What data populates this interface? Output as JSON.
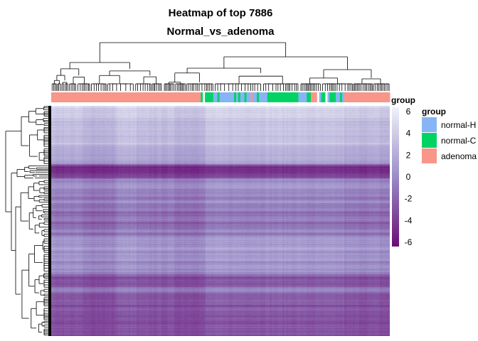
{
  "chart_data": {
    "type": "heatmap",
    "title": "Heatmap of top 7886",
    "subtitle": "Normal_vs_adenoma",
    "color_scale": {
      "title": "group",
      "min": -6,
      "max": 6,
      "ticks": [
        "6",
        "4",
        "2",
        "0",
        "-2",
        "-4",
        "-6"
      ],
      "tick_values": [
        6,
        4,
        2,
        0,
        -2,
        -4,
        -6
      ],
      "low_color": "#6A0F74",
      "mid_color": "#9A8CC6",
      "high_color": "#EEF3FA"
    },
    "annotation_legend": {
      "title": "group",
      "items": [
        {
          "label": "normal-H",
          "color": "#87B4F7"
        },
        {
          "label": "normal-C",
          "color": "#00D364"
        },
        {
          "label": "adenoma",
          "color": "#F8968A"
        }
      ]
    },
    "column_groups": "AAAAAAAAAAAAAAAAAAAAAAAAAAAAAAAAAAAAAAAAAAAAAAAAAAAAAAAAAAAAAAAAAAAAAAAACNCCCCHHCHHHHHHHCHCHHCHHAHHCHHHHCCCCCCCCCCCCCCCHHHHCCAAANHCCNHCCCHHCHAAAAAAAAAAAAAAAAAAAAAA",
    "row_profile_values": [
      [
        0,
        5.2
      ],
      [
        3,
        3.8
      ],
      [
        8,
        3.2
      ],
      [
        14,
        3.7
      ],
      [
        20,
        2.6
      ],
      [
        27,
        2.2
      ],
      [
        33,
        3.1
      ],
      [
        40,
        2.4
      ],
      [
        46,
        2.6
      ],
      [
        52,
        3.0
      ],
      [
        58,
        2.0
      ],
      [
        64,
        1.5
      ],
      [
        70,
        1.2
      ],
      [
        75,
        1.6
      ],
      [
        80,
        0.8
      ],
      [
        84,
        -3.8
      ],
      [
        87,
        -4.7
      ],
      [
        92,
        -4.4
      ],
      [
        97,
        -4.3
      ],
      [
        100,
        -3.9
      ],
      [
        103,
        0.7
      ],
      [
        106,
        -0.6
      ],
      [
        110,
        0.2
      ],
      [
        114,
        0.6
      ],
      [
        120,
        -1.0
      ],
      [
        125,
        -0.4
      ],
      [
        130,
        -1.2
      ],
      [
        135,
        0.2
      ],
      [
        140,
        -1.5
      ],
      [
        145,
        -1.0
      ],
      [
        150,
        -2.2
      ],
      [
        155,
        -1.4
      ],
      [
        160,
        -0.7
      ],
      [
        165,
        -2.4
      ],
      [
        170,
        -1.8
      ],
      [
        175,
        -0.3
      ],
      [
        180,
        -1.6
      ],
      [
        185,
        0.3
      ],
      [
        190,
        0.7
      ],
      [
        195,
        0.2
      ],
      [
        200,
        0.9
      ],
      [
        205,
        -0.4
      ],
      [
        210,
        0.6
      ],
      [
        215,
        1.1
      ],
      [
        220,
        -0.4
      ],
      [
        226,
        0.4
      ],
      [
        232,
        0.1
      ],
      [
        237,
        -1.2
      ],
      [
        242,
        -3.3
      ],
      [
        248,
        -2.6
      ],
      [
        254,
        -2.3
      ],
      [
        258,
        -0.6
      ],
      [
        265,
        -2.7
      ],
      [
        270,
        -3.1
      ],
      [
        276,
        -2.8
      ],
      [
        282,
        -3.2
      ],
      [
        288,
        -2.5
      ],
      [
        294,
        -3.4
      ],
      [
        300,
        -3.0
      ],
      [
        306,
        -3.2
      ],
      [
        312,
        -2.9
      ],
      [
        318,
        -2.6
      ],
      [
        323,
        -3.3
      ]
    ],
    "column_block_offsets": [
      {
        "from": 0,
        "to": 14,
        "offset": 0.2
      },
      {
        "from": 15,
        "to": 30,
        "offset": -0.4
      },
      {
        "from": 31,
        "to": 40,
        "offset": 0.5
      },
      {
        "from": 41,
        "to": 58,
        "offset": 0.0
      },
      {
        "from": 59,
        "to": 73,
        "offset": -0.3
      },
      {
        "from": 74,
        "to": 120,
        "offset": 0.6
      },
      {
        "from": 121,
        "to": 140,
        "offset": 0.4
      },
      {
        "from": 141,
        "to": 157,
        "offset": 0.0
      },
      {
        "from": 158,
        "to": 173,
        "offset": -0.2
      }
    ]
  }
}
